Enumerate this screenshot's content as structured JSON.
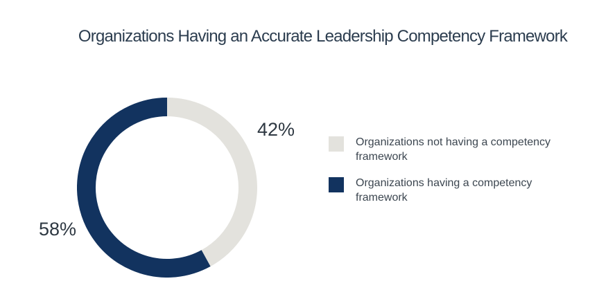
{
  "title": "Organizations Having an Accurate Leadership Competency Framework",
  "colors": {
    "background": "#ffffff",
    "title_text": "#2c3d4f",
    "percent_label_text": "#2e3842",
    "legend_text": "#3c4650",
    "slice_not_having": "#e3e2dd",
    "slice_having": "#12335f"
  },
  "chart_data": {
    "type": "pie",
    "variant": "donut",
    "title": "Organizations Having an Accurate Leadership Competency Framework",
    "start_angle_deg": 0,
    "direction": "clockwise",
    "donut_hole_ratio": 0.79,
    "legend_position": "right",
    "series": [
      {
        "label": "Organizations not having a competency framework",
        "value": 42,
        "display": "42%",
        "color": "#e3e2dd"
      },
      {
        "label": "Organizations having a competency framework",
        "value": 58,
        "display": "58%",
        "color": "#12335f"
      }
    ]
  }
}
